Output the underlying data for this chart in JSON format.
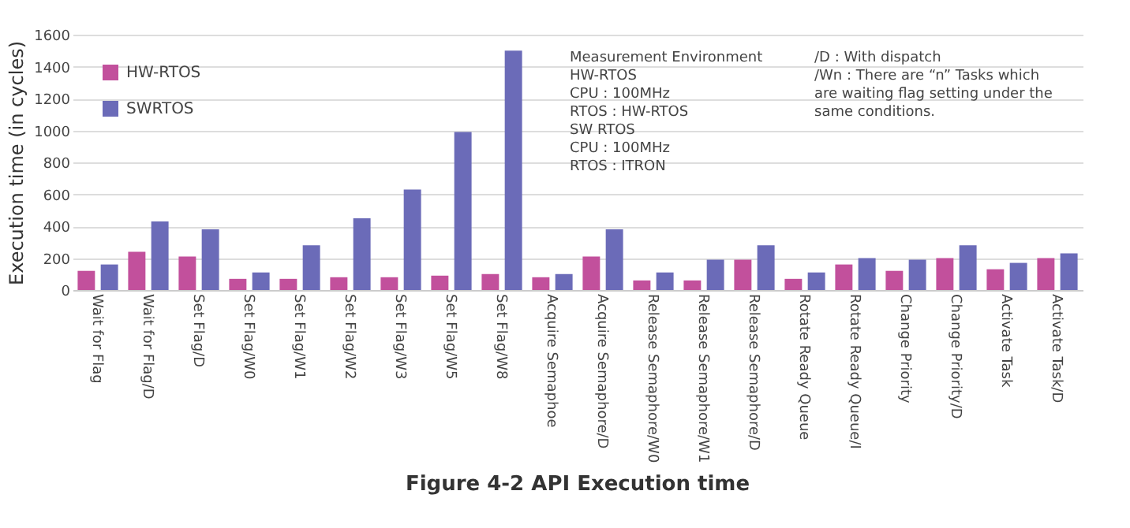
{
  "chart_data": {
    "type": "bar",
    "title": "Figure 4-2   API Execution time",
    "ylabel": "Execution time (in cycles)",
    "categories": [
      "Wait for Flag",
      "Wait for Flag/D",
      "Set Flag/D",
      "Set Flag/W0",
      "Set Flag/W1",
      "Set Flag/W2",
      "Set Flag/W3",
      "Set Flag/W5",
      "Set Flag/W8",
      "Acquire Semaphoe",
      "Acquire Semaphore/D",
      "Release Semaphore/W0",
      "Release Semaphore/W1",
      "Release Semaphore/D",
      "Rotate Ready Queue",
      "Rotate Ready Queue/I",
      "Change Priority",
      "Change Priority/D",
      "Activate Task",
      "Activate Task/D"
    ],
    "series": [
      {
        "name": "HW-RTOS",
        "color": "#c2509c",
        "values": [
          120,
          240,
          210,
          70,
          70,
          80,
          80,
          90,
          100,
          80,
          210,
          60,
          60,
          190,
          70,
          160,
          120,
          200,
          130,
          200
        ]
      },
      {
        "name": "SWRTOS",
        "color": "#6b6bb8",
        "values": [
          160,
          430,
          380,
          110,
          280,
          450,
          630,
          990,
          1500,
          100,
          380,
          110,
          190,
          280,
          110,
          200,
          190,
          280,
          170,
          230
        ]
      }
    ],
    "ylim": [
      0,
      1600
    ],
    "yticks": [
      0,
      200,
      400,
      600,
      800,
      1000,
      1200,
      1400,
      1600
    ],
    "grid": "y",
    "legend": "top left",
    "annotations": [
      "Measurement Environment\nHW-RTOS\n    CPU : 100MHz\n    RTOS : HW-RTOS\nSW RTOS\n    CPU : 100MHz\n    RTOS : ITRON",
      "/D : With dispatch\n/Wn : There are “n” Tasks which\nare waiting flag setting under the\nsame conditions."
    ]
  }
}
